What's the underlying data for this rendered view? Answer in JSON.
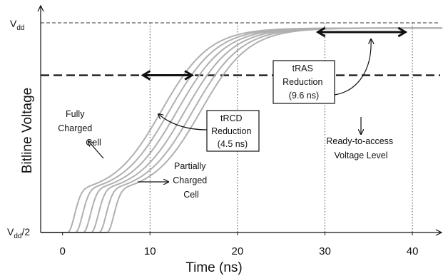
{
  "chart_data": {
    "type": "line",
    "xlabel": "Time (ns)",
    "ylabel": "Bitline Voltage",
    "x_ticks": [
      0,
      10,
      20,
      30,
      40
    ],
    "xlim": [
      -2.5,
      43.5
    ],
    "y_levels": {
      "vdd": {
        "main": "V",
        "sub": "dd",
        "suffix": ""
      },
      "half": {
        "main": "V",
        "sub": "dd",
        "suffix": "/2"
      }
    },
    "grid": {
      "vertical_dashed_at": [
        10,
        20,
        30,
        40
      ]
    },
    "ready_level": 0.75,
    "curve_shifts_ns": [
      0,
      0.9,
      1.8,
      2.7,
      3.6,
      4.5
    ],
    "annotations": {
      "fully_charged": [
        "Fully",
        "Charged",
        "Cell"
      ],
      "partially_charged": [
        "Partially",
        "Charged",
        "Cell"
      ],
      "trcd": [
        "tRCD",
        "Reduction",
        "(4.5 ns)"
      ],
      "tras": [
        "tRAS",
        "Reduction",
        "(9.6 ns)"
      ],
      "ready": [
        "Ready-to-access",
        "Voltage Level"
      ]
    },
    "arrows": {
      "trcd_ns": [
        9.2,
        14.8
      ],
      "tras_ns": [
        29.2,
        39.2
      ]
    },
    "colors": {
      "curve": "#b0b0b0",
      "axis": "#111111",
      "dashed": "#111111"
    }
  }
}
